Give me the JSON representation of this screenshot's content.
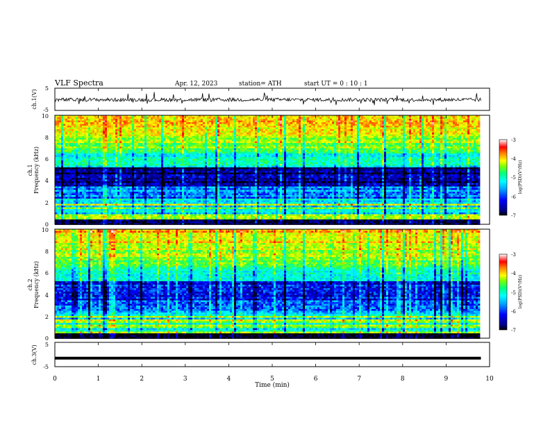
{
  "header": {
    "title": "VLF  Spectra",
    "date": "Apr. 12, 2023",
    "station": "station= ATH",
    "start_ut": "start  UT  =    0  : 10 : 1"
  },
  "chart_data": [
    {
      "type": "line",
      "panel": "ch1-waveform",
      "ylabel": "ch.1(V)",
      "ylim": [
        -5,
        5
      ],
      "yticks": [
        "5",
        "-5"
      ],
      "xlim": [
        0,
        10
      ],
      "x_end": 9.8,
      "baseline": -0.2,
      "series": [
        {
          "values_note": "noisy waveform around 0 V"
        }
      ]
    },
    {
      "type": "heatmap",
      "panel": "ch1-spectrogram",
      "ylabel_top": "ch.1",
      "ylabel": "Frequency  (kHz)",
      "ylim": [
        0,
        10
      ],
      "yticks": [
        "0",
        "2",
        "4",
        "6",
        "8",
        "10"
      ],
      "xlim": [
        0,
        10
      ],
      "x_end": 9.8,
      "colorbar": {
        "label": "log(PSD)(V²/Hz)",
        "ticks": [
          "-3",
          "-4",
          "-5",
          "-6",
          "-7"
        ],
        "range": [
          -7,
          -3
        ]
      }
    },
    {
      "type": "heatmap",
      "panel": "ch2-spectrogram",
      "ylabel_top": "ch.2",
      "ylabel": "Frequency  (kHz)",
      "ylim": [
        0,
        10
      ],
      "yticks": [
        "0",
        "2",
        "4",
        "6",
        "8",
        "10"
      ],
      "xlim": [
        0,
        10
      ],
      "x_end": 9.8,
      "colorbar": {
        "label": "log(PSD)(V²/Hz)",
        "ticks": [
          "-3",
          "-4",
          "-5",
          "-6",
          "-7"
        ],
        "range": [
          -7,
          -3
        ]
      }
    },
    {
      "type": "line",
      "panel": "ch3-waveform",
      "ylabel": "ch.3(V)",
      "ylim": [
        -5,
        5
      ],
      "yticks": [
        "5",
        "-5"
      ],
      "xlim": [
        0,
        10
      ],
      "x_end": 9.8,
      "baseline": -1.5,
      "series": [
        {
          "values_note": "flat signal near -1.5 V"
        }
      ]
    }
  ],
  "x_axis": {
    "label": "Time  (min)",
    "ticks": [
      "0",
      "1",
      "2",
      "3",
      "4",
      "5",
      "6",
      "7",
      "8",
      "9",
      "10"
    ]
  },
  "colors": {
    "colormap": [
      "#000000",
      "#000080",
      "#0000ff",
      "#00aaff",
      "#00ffff",
      "#00ff80",
      "#80ff00",
      "#ffff00",
      "#ff8000",
      "#ff0000",
      "#ffffff"
    ]
  }
}
